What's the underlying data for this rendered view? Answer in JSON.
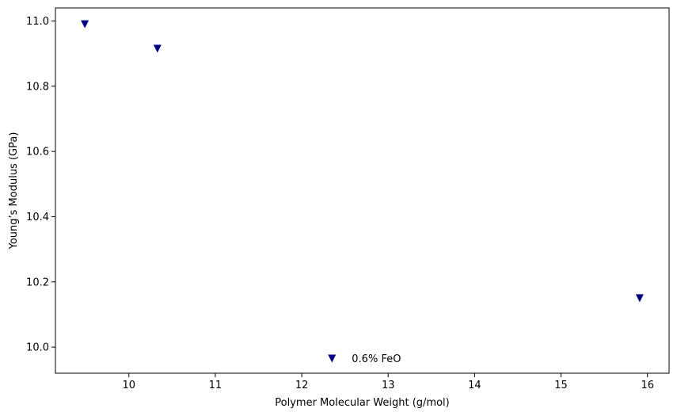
{
  "chart_data": {
    "type": "scatter",
    "title": "",
    "xlabel": "Polymer Molecular Weight (g/mol)",
    "ylabel": "Young’s Modulus (GPa)",
    "xlim": [
      9.15,
      16.25
    ],
    "ylim": [
      9.92,
      11.04
    ],
    "x_ticks": [
      10,
      11,
      12,
      13,
      14,
      15,
      16
    ],
    "y_ticks": [
      10.0,
      10.2,
      10.4,
      10.6,
      10.8,
      11.0
    ],
    "y_tick_labels": [
      "10.0",
      "10.2",
      "10.4",
      "10.6",
      "10.8",
      "11.0"
    ],
    "grid": false,
    "marker": "triangle-down",
    "marker_color": "#000080",
    "points": [
      {
        "x": 9.49,
        "y": 10.99
      },
      {
        "x": 10.33,
        "y": 10.915
      },
      {
        "x": 12.35,
        "y": 9.965
      },
      {
        "x": 15.91,
        "y": 10.15
      }
    ],
    "annotations": [
      {
        "text": "0.6% FeO",
        "x": 12.35,
        "y": 9.965
      }
    ]
  }
}
